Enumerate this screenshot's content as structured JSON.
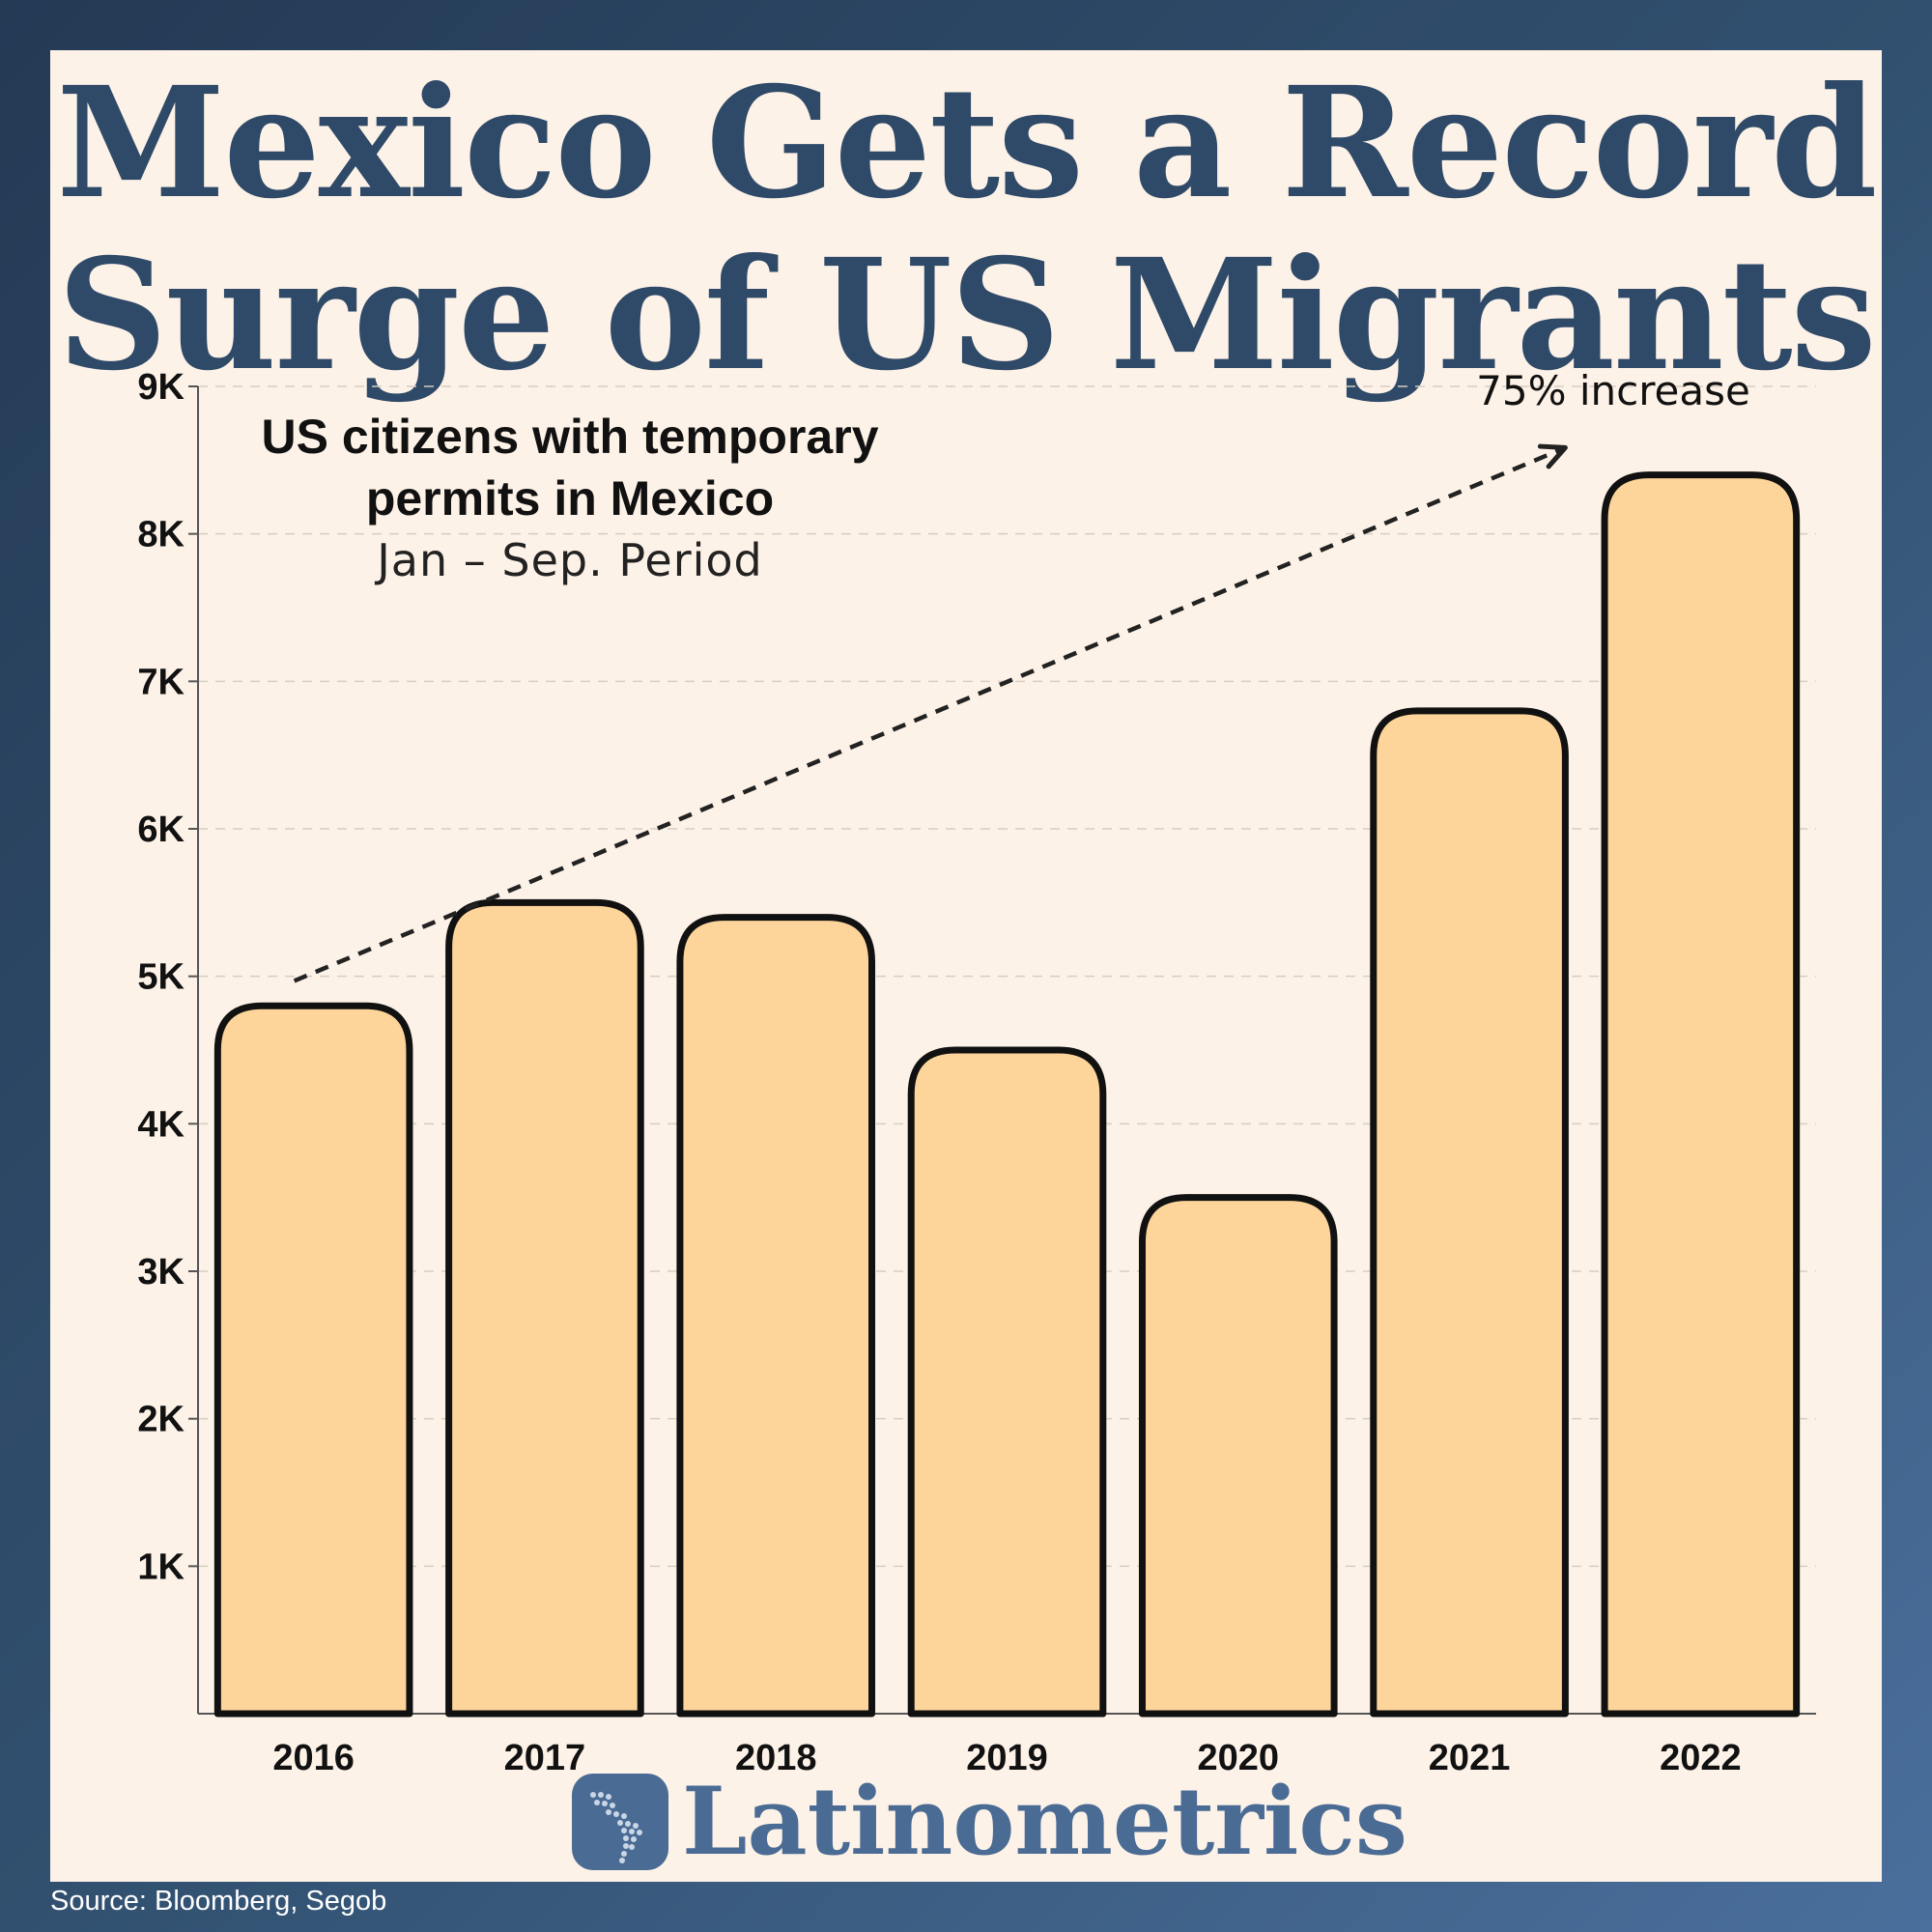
{
  "title_line1": "Mexico Gets a Record",
  "title_line2": "Surge of US Migrants",
  "subtitle_bold_line1": "US citizens with temporary",
  "subtitle_bold_line2": "permits in Mexico",
  "subtitle_light": "Jan – Sep. Period",
  "annotation": "75% increase",
  "brand": "Latinometrics",
  "source": "Source: Bloomberg, Segob",
  "colors": {
    "background": "#2f4a68",
    "panel": "#fdf2e7",
    "bar_fill": "#fdd59a",
    "bar_stroke": "#111111",
    "title": "#2f4a68",
    "brand": "#4a6b94"
  },
  "chart_data": {
    "type": "bar",
    "categories": [
      "2016",
      "2017",
      "2018",
      "2019",
      "2020",
      "2021",
      "2022"
    ],
    "values": [
      4800,
      5500,
      5400,
      4500,
      3500,
      6800,
      8400
    ],
    "ylim": [
      0,
      9000
    ],
    "yticks": [
      1000,
      2000,
      3000,
      4000,
      5000,
      6000,
      7000,
      8000,
      9000
    ],
    "ytick_labels": [
      "1K",
      "2K",
      "3K",
      "4K",
      "5K",
      "6K",
      "7K",
      "8K",
      "9K"
    ],
    "grid": "horizontal dashed",
    "trend_arrow": {
      "from_category": "2016",
      "from_value": 5100,
      "to_category": "2022",
      "to_value": 8650
    }
  }
}
